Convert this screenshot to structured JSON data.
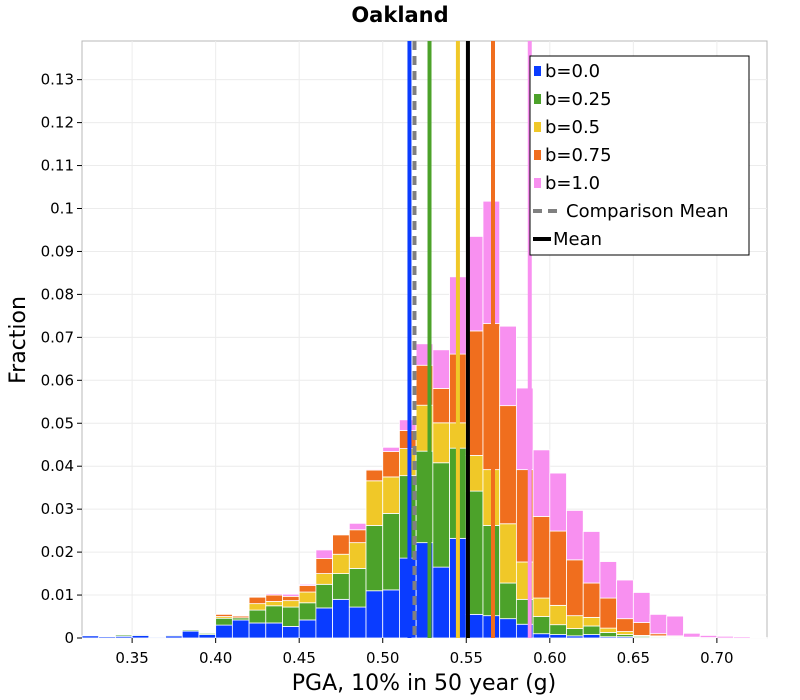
{
  "chart_data": {
    "type": "bar",
    "stacked": true,
    "title": "Oakland",
    "xlabel": "PGA, 10% in 50 year (g)",
    "ylabel": "Fraction",
    "xlim": [
      0.32,
      0.73
    ],
    "ylim": [
      0,
      0.139
    ],
    "xticks": [
      0.35,
      0.4,
      0.45,
      0.5,
      0.55,
      0.6,
      0.65,
      0.7
    ],
    "xtick_labels": [
      "0.35",
      "0.40",
      "0.45",
      "0.50",
      "0.55",
      "0.60",
      "0.65",
      "0.70"
    ],
    "yticks": [
      0,
      0.01,
      0.02,
      0.03,
      0.04,
      0.05,
      0.06,
      0.07,
      0.08,
      0.09,
      0.1,
      0.11,
      0.12,
      0.13
    ],
    "ytick_labels": [
      "0",
      "0.01",
      "0.02",
      "0.03",
      "0.04",
      "0.05",
      "0.06",
      "0.07",
      "0.08",
      "0.09",
      "0.1",
      "0.11",
      "0.12",
      "0.13"
    ],
    "grid": true,
    "legend_position": "top-right",
    "bin_width": 0.01,
    "bin_centers": [
      0.325,
      0.335,
      0.345,
      0.355,
      0.365,
      0.375,
      0.385,
      0.395,
      0.405,
      0.415,
      0.425,
      0.435,
      0.445,
      0.455,
      0.465,
      0.475,
      0.485,
      0.495,
      0.505,
      0.515,
      0.525,
      0.535,
      0.545,
      0.555,
      0.565,
      0.575,
      0.585,
      0.595,
      0.605,
      0.615,
      0.625,
      0.635,
      0.645,
      0.655,
      0.665,
      0.675,
      0.685,
      0.695,
      0.705,
      0.715,
      0.725
    ],
    "series": [
      {
        "name": "b=0.0",
        "color": "#0a3cff",
        "values": [
          0.0005,
          0.0003,
          0.0004,
          0.0006,
          0.0002,
          0.0005,
          0.0016,
          0.0008,
          0.003,
          0.0042,
          0.0035,
          0.0035,
          0.0027,
          0.0042,
          0.007,
          0.009,
          0.0072,
          0.011,
          0.0112,
          0.0186,
          0.0222,
          0.0165,
          0.0232,
          0.0055,
          0.0052,
          0.0045,
          0.0032,
          0.001,
          0.0008,
          0.0005,
          0.0008,
          0.0003,
          0.0003,
          0.0001,
          0.0001,
          0.0001,
          0.0,
          0.0,
          0.0,
          0.0,
          0.0
        ]
      },
      {
        "name": "b=0.25",
        "color": "#4ca22a",
        "values": [
          0.0,
          0.0,
          0.0003,
          0.0002,
          0.0,
          0.0002,
          0.0003,
          0.0003,
          0.0016,
          0.0005,
          0.003,
          0.004,
          0.0045,
          0.004,
          0.0055,
          0.006,
          0.009,
          0.0152,
          0.0178,
          0.0192,
          0.0213,
          0.0243,
          0.021,
          0.0287,
          0.021,
          0.0083,
          0.0058,
          0.004,
          0.0023,
          0.0017,
          0.002,
          0.001,
          0.0005,
          0.0003,
          0.0002,
          0.0001,
          0.0,
          0.0,
          0.0,
          0.0,
          0.0
        ]
      },
      {
        "name": "b=0.5",
        "color": "#f0c828",
        "values": [
          0.0,
          0.0,
          0.0,
          0.0,
          0.0,
          0.0,
          0.0001,
          0.0001,
          0.0004,
          0.0,
          0.0015,
          0.001,
          0.0015,
          0.0025,
          0.0025,
          0.0045,
          0.006,
          0.0104,
          0.0085,
          0.0063,
          0.0107,
          0.0093,
          0.0059,
          0.0083,
          0.013,
          0.0138,
          0.0087,
          0.0043,
          0.0045,
          0.003,
          0.002,
          0.001,
          0.0007,
          0.0002,
          0.0002,
          0.0001,
          0.0001,
          0.0001,
          0.0,
          0.0,
          0.0
        ]
      },
      {
        "name": "b=0.75",
        "color": "#f06e1e",
        "values": [
          0.0,
          0.0,
          0.0,
          0.0,
          0.0,
          0.0,
          0.0,
          0.0,
          0.0005,
          0.0004,
          0.0015,
          0.0015,
          0.001,
          0.0015,
          0.0035,
          0.0045,
          0.003,
          0.0025,
          0.0059,
          0.0042,
          0.0093,
          0.008,
          0.016,
          0.029,
          0.034,
          0.0275,
          0.0215,
          0.019,
          0.0173,
          0.013,
          0.008,
          0.007,
          0.003,
          0.003,
          0.0005,
          0.0002,
          0.0001,
          0.0,
          0.0,
          0.0,
          0.0
        ]
      },
      {
        "name": "b=1.0",
        "color": "#f890f0",
        "values": [
          0.0,
          0.0,
          0.0,
          0.0,
          0.0,
          0.0,
          0.0,
          0.0,
          0.0,
          0.0,
          0.0,
          0.0003,
          0.0005,
          0.0003,
          0.002,
          0.0,
          0.0015,
          0.0002,
          0.001,
          0.0025,
          0.005,
          0.009,
          0.018,
          0.022,
          0.0285,
          0.0185,
          0.019,
          0.0155,
          0.0135,
          0.0115,
          0.012,
          0.0085,
          0.009,
          0.007,
          0.0045,
          0.0046,
          0.0009,
          0.0005,
          0.0004,
          0.0003,
          0.0001
        ]
      }
    ],
    "mean_lines": [
      {
        "series": "b=0.0",
        "x": 0.516,
        "color": "#0a3cff"
      },
      {
        "series": "b=0.25",
        "x": 0.528,
        "color": "#4ca22a"
      },
      {
        "series": "b=0.5",
        "x": 0.545,
        "color": "#f0c828"
      },
      {
        "series": "b=0.75",
        "x": 0.566,
        "color": "#f06e1e"
      },
      {
        "series": "b=1.0",
        "x": 0.588,
        "color": "#f890f0"
      }
    ],
    "comparison_mean": {
      "name": "Comparison Mean",
      "x": 0.519,
      "color": "#808080",
      "style": "dashed"
    },
    "mean": {
      "name": "Mean",
      "x": 0.551,
      "color": "#000000",
      "style": "solid"
    }
  }
}
